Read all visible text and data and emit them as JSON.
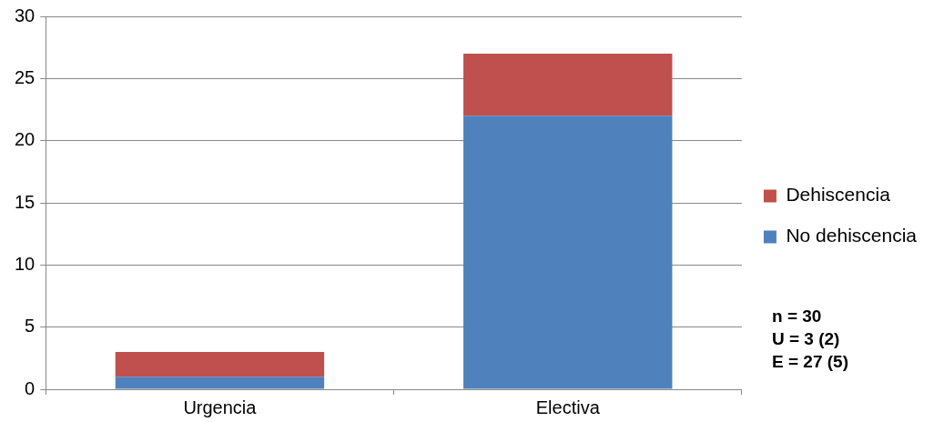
{
  "chart_data": {
    "type": "bar",
    "stacked": true,
    "categories": [
      "Urgencia",
      "Electiva"
    ],
    "series": [
      {
        "name": "No dehiscencia",
        "color": "#4f81bd",
        "values": [
          1,
          22
        ]
      },
      {
        "name": "Dehiscencia",
        "color": "#c0504d",
        "values": [
          2,
          5
        ]
      }
    ],
    "ylim": [
      0,
      30
    ],
    "yticks": [
      0,
      5,
      10,
      15,
      20,
      25,
      30
    ],
    "grid": "y",
    "legend": "right",
    "annotations": [
      "n = 30",
      "U = 3 (2)",
      "E = 27 (5)"
    ]
  }
}
